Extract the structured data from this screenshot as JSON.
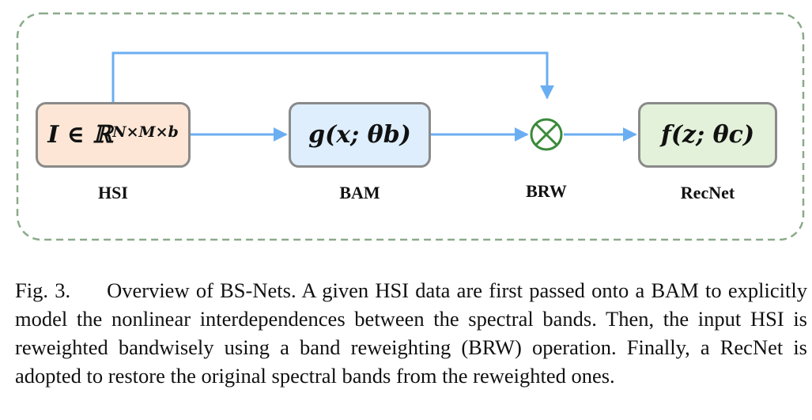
{
  "diagram": {
    "nodes": {
      "hsi": {
        "formula": "𝑰 ∈ ℝ",
        "superscript": "𝑵×𝑴×𝒃",
        "label": "HSI"
      },
      "bam": {
        "formula": "𝒈(𝒙; 𝜽𝒃)",
        "label": "BAM"
      },
      "brw": {
        "symbol": "⊗",
        "label": "BRW"
      },
      "recnet": {
        "formula": "𝒇(𝒛; 𝜽𝒄)",
        "label": "RecNet"
      }
    },
    "colors": {
      "arrow": "#6aaef2",
      "operator": "#3a8a3a",
      "frame": "#8aaa8a",
      "hsi_fill": "#fde6d5",
      "bam_fill": "#deeefc",
      "recnet_fill": "#e3f1da"
    }
  },
  "caption": {
    "fig_label": "Fig. 3.",
    "text": "Overview of BS-Nets. A given HSI data are first passed onto a BAM to explicitly model the nonlinear interdependences between the spectral bands. Then, the input HSI is reweighted bandwisely using a band reweighting (BRW) operation. Finally, a RecNet is adopted to restore the original spectral bands from the reweighted ones."
  }
}
